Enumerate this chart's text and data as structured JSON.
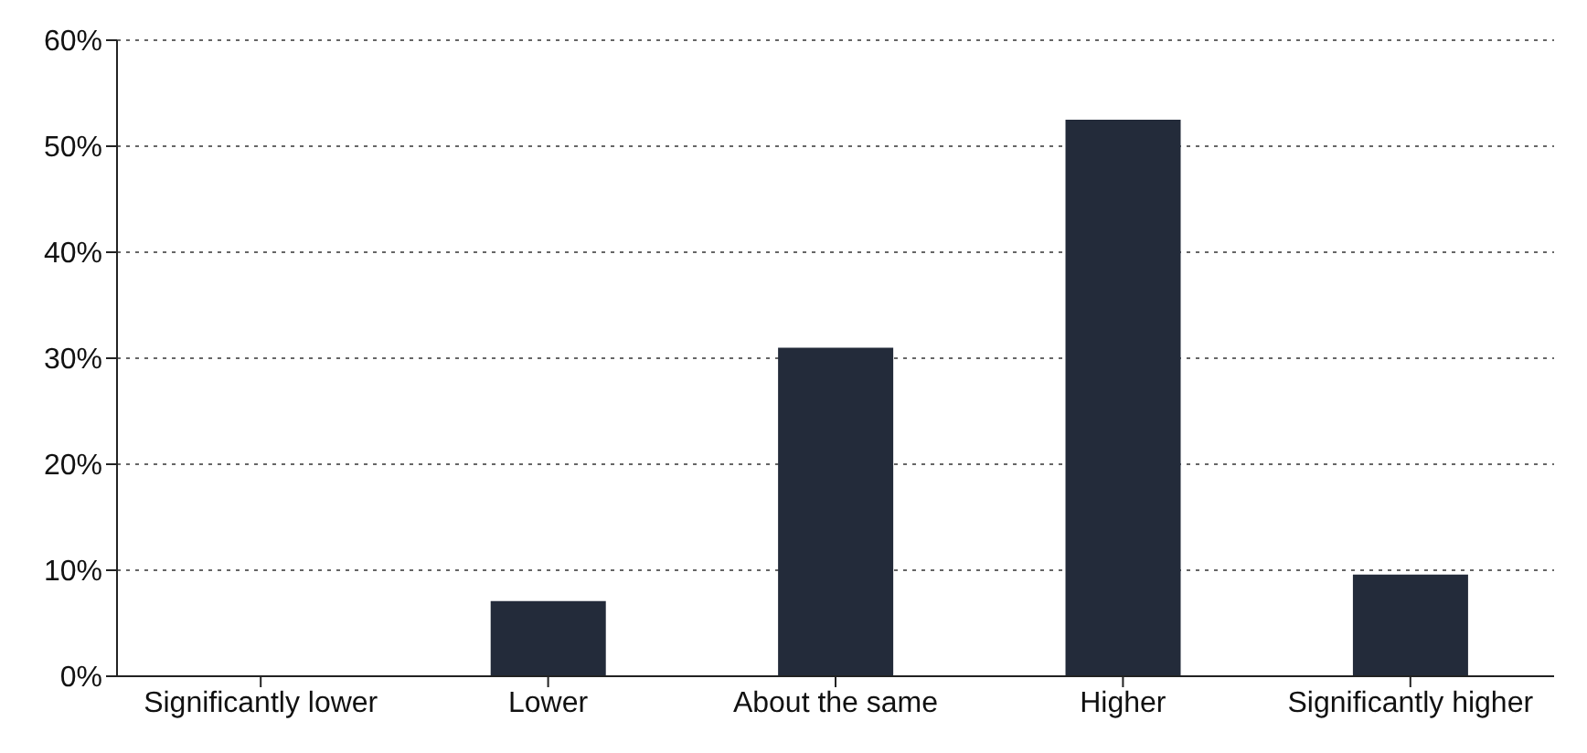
{
  "chart_data": {
    "type": "bar",
    "categories": [
      "Significantly lower",
      "Lower",
      "About the same",
      "Higher",
      "Significantly higher"
    ],
    "values": [
      0,
      7.1,
      31,
      52.5,
      9.6
    ],
    "color": "#232b3a",
    "ylim": [
      0,
      60
    ],
    "yticks": [
      {
        "value": 0,
        "label": "0%"
      },
      {
        "value": 10,
        "label": "10%"
      },
      {
        "value": 20,
        "label": "20%"
      },
      {
        "value": 30,
        "label": "30%"
      },
      {
        "value": 40,
        "label": "40%"
      },
      {
        "value": 50,
        "label": "50%"
      },
      {
        "value": 60,
        "label": "60%"
      }
    ],
    "grid": "y",
    "line_style": "dotted"
  }
}
